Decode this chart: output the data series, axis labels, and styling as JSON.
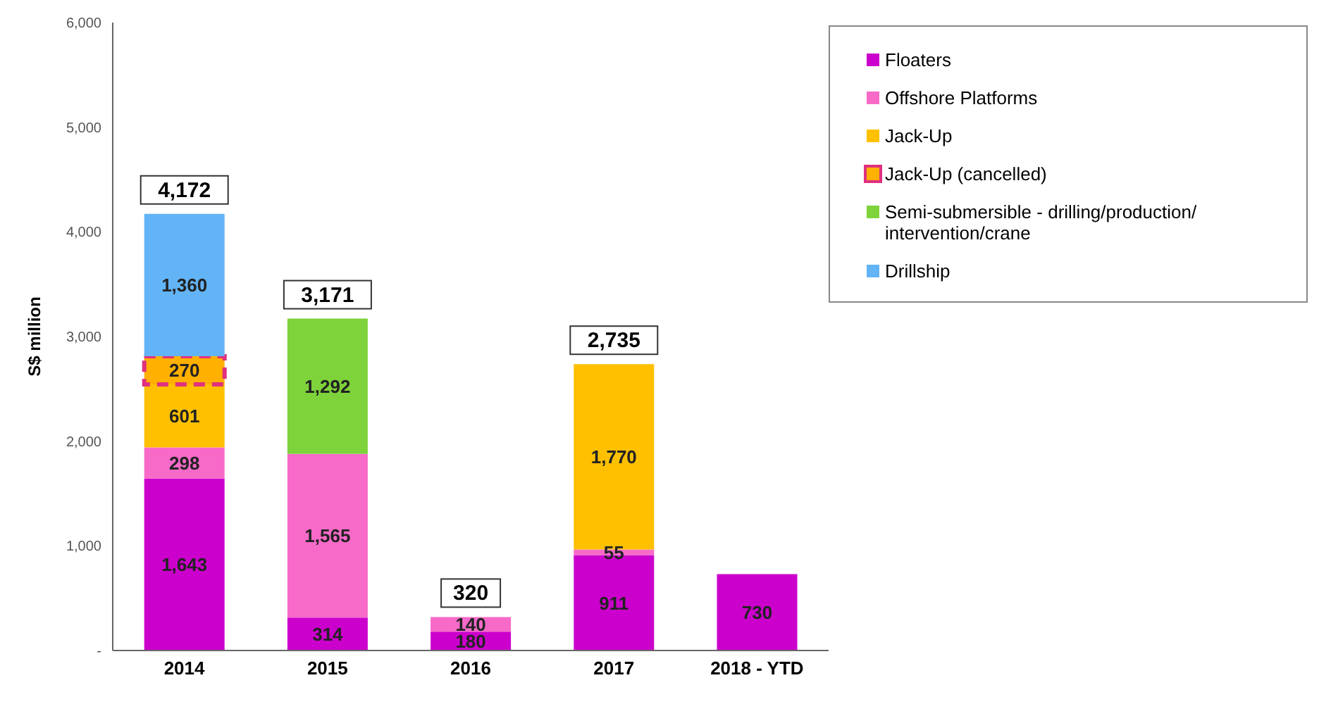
{
  "chart_data": {
    "type": "bar",
    "stacked": true,
    "ylabel": "S$ million",
    "categories": [
      "2014",
      "2015",
      "2016",
      "2017",
      "2018 - YTD"
    ],
    "series": [
      {
        "name": "Floaters",
        "color": "#cc00cc",
        "values": [
          1643,
          314,
          180,
          911,
          730
        ],
        "value_labels": [
          "1,643",
          "314",
          "180",
          "911",
          "730"
        ]
      },
      {
        "name": "Offshore Platforms",
        "color": "#f76ac8",
        "values": [
          298,
          1565,
          140,
          55,
          null
        ],
        "value_labels": [
          "298",
          "1,565",
          "140",
          "55",
          null
        ]
      },
      {
        "name": "Jack-Up",
        "color": "#ffc000",
        "values": [
          601,
          null,
          null,
          1770,
          null
        ],
        "value_labels": [
          "601",
          null,
          null,
          "1,770",
          null
        ]
      },
      {
        "name": "Jack-Up (cancelled)",
        "color": "#ffb000",
        "line_style": "dashed",
        "values": [
          270,
          null,
          null,
          null,
          null
        ],
        "value_labels": [
          "270",
          null,
          null,
          null,
          null
        ]
      },
      {
        "name": "Semi-submersible - drilling/production/ intervention/crane",
        "color": "#7ed33a",
        "values": [
          null,
          1292,
          null,
          null,
          null
        ],
        "value_labels": [
          null,
          "1,292",
          null,
          null,
          null
        ]
      },
      {
        "name": "Drillship",
        "color": "#63b4f7",
        "values": [
          1360,
          null,
          null,
          null,
          null
        ],
        "value_labels": [
          "1,360",
          null,
          null,
          null,
          null
        ]
      }
    ],
    "totals": [
      "4,172",
      "3,171",
      "320",
      "2,735",
      null
    ],
    "ylim": [
      0,
      6000
    ],
    "yticks": [
      {
        "value": 0,
        "label": "-"
      },
      {
        "value": 1000,
        "label": "1,000"
      },
      {
        "value": 2000,
        "label": "2,000"
      },
      {
        "value": 3000,
        "label": "3,000"
      },
      {
        "value": 4000,
        "label": "4,000"
      },
      {
        "value": 5000,
        "label": "5,000"
      },
      {
        "value": 6000,
        "label": "6,000"
      }
    ],
    "legend": "top right"
  }
}
